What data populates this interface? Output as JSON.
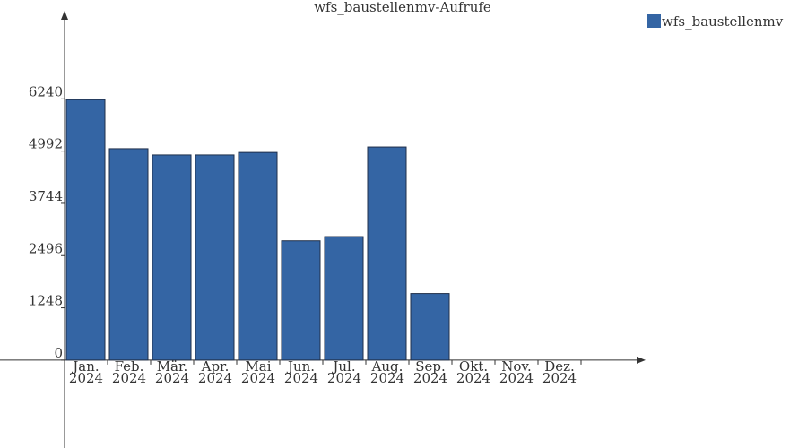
{
  "chart_data": {
    "type": "bar",
    "title": "wfs_baustellenmv-Aufrufe",
    "categories": [
      "Jan. 2024",
      "Feb. 2024",
      "Mär. 2024",
      "Apr. 2024",
      "Mai 2024",
      "Jun. 2024",
      "Jul. 2024",
      "Aug. 2024",
      "Sep. 2024",
      "Okt. 2024",
      "Nov. 2024",
      "Dez. 2024"
    ],
    "series": [
      {
        "name": "wfs_baustellenmv",
        "color": "#3465a4",
        "values": [
          6220,
          5050,
          4900,
          4900,
          4960,
          2850,
          2950,
          5090,
          1590,
          0,
          0,
          0
        ]
      }
    ],
    "ylim": [
      -2100,
      8280
    ],
    "yticks": [
      0,
      1248,
      2496,
      3744,
      4992,
      6240
    ],
    "legend": "top-right"
  }
}
